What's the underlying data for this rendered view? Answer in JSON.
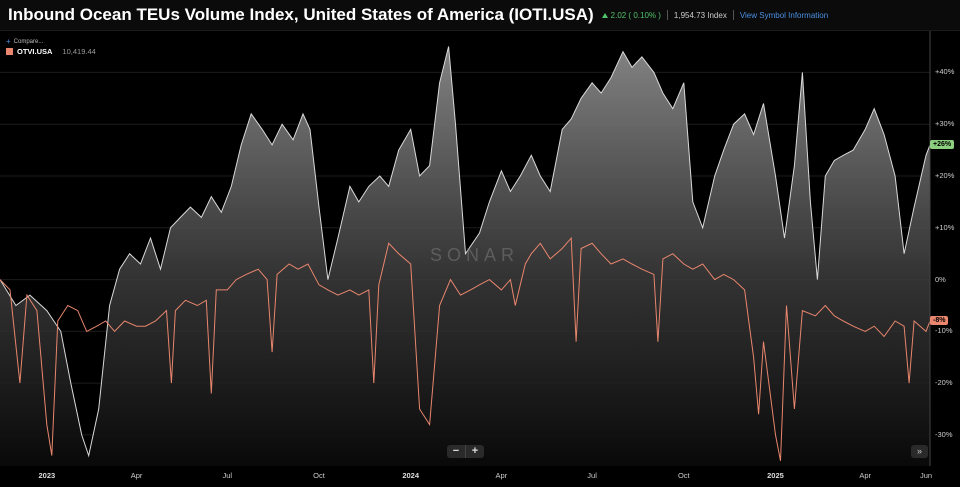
{
  "header": {
    "title": "Inbound Ocean TEUs Volume Index, United States of America (IOTI.USA)",
    "change": "2.02 ( 0.10% )",
    "price": "1,954.73 Index",
    "info_link": "View Symbol Information"
  },
  "compare_label": "Compare...",
  "legend": {
    "name": "OTVI.USA",
    "value": "10,419.44",
    "color": "#e9866d"
  },
  "watermark": "SONAR",
  "zoom": {
    "minus": "−",
    "plus": "+"
  },
  "ffwd": "»",
  "colors": {
    "ioti": "#d9d9d9",
    "otvi": "#e9866d",
    "green_badge": "#8ccf7e"
  },
  "chart_data": {
    "type": "line",
    "y_unit": "percent change",
    "ylim": [
      -36,
      48
    ],
    "yticks": [
      "+40%",
      "+30%",
      "+20%",
      "+10%",
      "0%",
      "-10%",
      "-20%",
      "-30%"
    ],
    "ytick_values": [
      40,
      30,
      20,
      10,
      0,
      -10,
      -20,
      -30
    ],
    "xlim": [
      "2022-11-15",
      "2025-06-05"
    ],
    "xticks": [
      {
        "label": "2023",
        "date": "2023-01-01",
        "bold": true
      },
      {
        "label": "Apr",
        "date": "2023-04-01"
      },
      {
        "label": "Jul",
        "date": "2023-07-01"
      },
      {
        "label": "Oct",
        "date": "2023-10-01"
      },
      {
        "label": "2024",
        "date": "2024-01-01",
        "bold": true
      },
      {
        "label": "Apr",
        "date": "2024-04-01"
      },
      {
        "label": "Jul",
        "date": "2024-07-01"
      },
      {
        "label": "Oct",
        "date": "2024-10-01"
      },
      {
        "label": "2025",
        "date": "2025-01-01",
        "bold": true
      },
      {
        "label": "Apr",
        "date": "2025-04-01"
      },
      {
        "label": "Jun",
        "date": "2025-06-01"
      }
    ],
    "last_badges": [
      {
        "series": "IOTI.USA",
        "label": "+26%",
        "value": 26
      },
      {
        "series": "OTVI.USA",
        "label": "-8%",
        "value": -8
      }
    ],
    "series": [
      {
        "key": "IOTI.USA",
        "area": true,
        "points": [
          [
            "2022-11-15",
            0
          ],
          [
            "2022-12-01",
            -5
          ],
          [
            "2022-12-15",
            -3
          ],
          [
            "2023-01-01",
            -6
          ],
          [
            "2023-01-15",
            -10
          ],
          [
            "2023-01-25",
            -20
          ],
          [
            "2023-02-05",
            -30
          ],
          [
            "2023-02-12",
            -34
          ],
          [
            "2023-02-22",
            -25
          ],
          [
            "2023-03-05",
            -5
          ],
          [
            "2023-03-15",
            2
          ],
          [
            "2023-03-25",
            5
          ],
          [
            "2023-04-05",
            3
          ],
          [
            "2023-04-15",
            8
          ],
          [
            "2023-04-25",
            2
          ],
          [
            "2023-05-05",
            10
          ],
          [
            "2023-05-15",
            12
          ],
          [
            "2023-05-25",
            14
          ],
          [
            "2023-06-05",
            12
          ],
          [
            "2023-06-15",
            16
          ],
          [
            "2023-06-25",
            13
          ],
          [
            "2023-07-05",
            18
          ],
          [
            "2023-07-15",
            26
          ],
          [
            "2023-07-25",
            32
          ],
          [
            "2023-08-05",
            29
          ],
          [
            "2023-08-15",
            26
          ],
          [
            "2023-08-25",
            30
          ],
          [
            "2023-09-05",
            27
          ],
          [
            "2023-09-15",
            32
          ],
          [
            "2023-09-22",
            29
          ],
          [
            "2023-10-01",
            14
          ],
          [
            "2023-10-10",
            0
          ],
          [
            "2023-10-20",
            8
          ],
          [
            "2023-11-01",
            18
          ],
          [
            "2023-11-10",
            15
          ],
          [
            "2023-11-20",
            18
          ],
          [
            "2023-12-01",
            20
          ],
          [
            "2023-12-10",
            18
          ],
          [
            "2023-12-20",
            25
          ],
          [
            "2024-01-01",
            29
          ],
          [
            "2024-01-10",
            20
          ],
          [
            "2024-01-20",
            22
          ],
          [
            "2024-01-30",
            38
          ],
          [
            "2024-02-08",
            45
          ],
          [
            "2024-02-15",
            30
          ],
          [
            "2024-02-25",
            5
          ],
          [
            "2024-03-10",
            9
          ],
          [
            "2024-03-20",
            15
          ],
          [
            "2024-04-01",
            21
          ],
          [
            "2024-04-10",
            17
          ],
          [
            "2024-04-20",
            20
          ],
          [
            "2024-05-01",
            24
          ],
          [
            "2024-05-10",
            20
          ],
          [
            "2024-05-20",
            17
          ],
          [
            "2024-06-01",
            29
          ],
          [
            "2024-06-10",
            31
          ],
          [
            "2024-06-20",
            35
          ],
          [
            "2024-07-01",
            38
          ],
          [
            "2024-07-10",
            36
          ],
          [
            "2024-07-20",
            39
          ],
          [
            "2024-08-01",
            44
          ],
          [
            "2024-08-10",
            41
          ],
          [
            "2024-08-20",
            43
          ],
          [
            "2024-09-01",
            40
          ],
          [
            "2024-09-10",
            36
          ],
          [
            "2024-09-20",
            33
          ],
          [
            "2024-10-01",
            38
          ],
          [
            "2024-10-10",
            15
          ],
          [
            "2024-10-20",
            10
          ],
          [
            "2024-11-01",
            20
          ],
          [
            "2024-11-10",
            25
          ],
          [
            "2024-11-20",
            30
          ],
          [
            "2024-12-01",
            32
          ],
          [
            "2024-12-10",
            28
          ],
          [
            "2024-12-20",
            34
          ],
          [
            "2025-01-01",
            20
          ],
          [
            "2025-01-10",
            8
          ],
          [
            "2025-01-20",
            22
          ],
          [
            "2025-01-28",
            40
          ],
          [
            "2025-02-05",
            15
          ],
          [
            "2025-02-12",
            0
          ],
          [
            "2025-02-20",
            20
          ],
          [
            "2025-03-01",
            23
          ],
          [
            "2025-03-10",
            24
          ],
          [
            "2025-03-20",
            25
          ],
          [
            "2025-04-01",
            29
          ],
          [
            "2025-04-10",
            33
          ],
          [
            "2025-04-20",
            28
          ],
          [
            "2025-05-01",
            20
          ],
          [
            "2025-05-10",
            5
          ],
          [
            "2025-05-20",
            14
          ],
          [
            "2025-06-01",
            24
          ],
          [
            "2025-06-05",
            26
          ]
        ]
      },
      {
        "key": "OTVI.USA",
        "area": false,
        "points": [
          [
            "2022-11-15",
            0
          ],
          [
            "2022-11-25",
            -2
          ],
          [
            "2022-12-05",
            -20
          ],
          [
            "2022-12-12",
            -3
          ],
          [
            "2022-12-22",
            -6
          ],
          [
            "2023-01-01",
            -28
          ],
          [
            "2023-01-06",
            -34
          ],
          [
            "2023-01-12",
            -8
          ],
          [
            "2023-01-22",
            -5
          ],
          [
            "2023-02-01",
            -6
          ],
          [
            "2023-02-10",
            -10
          ],
          [
            "2023-02-20",
            -9
          ],
          [
            "2023-03-01",
            -8
          ],
          [
            "2023-03-10",
            -10
          ],
          [
            "2023-03-20",
            -8
          ],
          [
            "2023-04-01",
            -9
          ],
          [
            "2023-04-10",
            -9
          ],
          [
            "2023-04-20",
            -8
          ],
          [
            "2023-05-01",
            -6
          ],
          [
            "2023-05-06",
            -20
          ],
          [
            "2023-05-10",
            -6
          ],
          [
            "2023-05-20",
            -4
          ],
          [
            "2023-06-01",
            -5
          ],
          [
            "2023-06-10",
            -4
          ],
          [
            "2023-06-15",
            -22
          ],
          [
            "2023-06-20",
            -2
          ],
          [
            "2023-07-01",
            -2
          ],
          [
            "2023-07-10",
            0
          ],
          [
            "2023-07-20",
            1
          ],
          [
            "2023-08-01",
            2
          ],
          [
            "2023-08-10",
            0
          ],
          [
            "2023-08-15",
            -14
          ],
          [
            "2023-08-20",
            1
          ],
          [
            "2023-09-01",
            3
          ],
          [
            "2023-09-10",
            2
          ],
          [
            "2023-09-20",
            3
          ],
          [
            "2023-10-01",
            -1
          ],
          [
            "2023-10-10",
            -2
          ],
          [
            "2023-10-20",
            -3
          ],
          [
            "2023-11-01",
            -2
          ],
          [
            "2023-11-10",
            -3
          ],
          [
            "2023-11-20",
            -2
          ],
          [
            "2023-11-25",
            -20
          ],
          [
            "2023-11-30",
            -1
          ],
          [
            "2023-12-10",
            7
          ],
          [
            "2023-12-20",
            5
          ],
          [
            "2024-01-01",
            3
          ],
          [
            "2024-01-10",
            -25
          ],
          [
            "2024-01-20",
            -28
          ],
          [
            "2024-01-30",
            -5
          ],
          [
            "2024-02-10",
            0
          ],
          [
            "2024-02-20",
            -3
          ],
          [
            "2024-03-01",
            -2
          ],
          [
            "2024-03-10",
            -1
          ],
          [
            "2024-03-20",
            0
          ],
          [
            "2024-04-01",
            -2
          ],
          [
            "2024-04-10",
            0
          ],
          [
            "2024-04-15",
            -5
          ],
          [
            "2024-04-25",
            3
          ],
          [
            "2024-05-01",
            5
          ],
          [
            "2024-05-10",
            7
          ],
          [
            "2024-05-20",
            4
          ],
          [
            "2024-06-01",
            6
          ],
          [
            "2024-06-10",
            8
          ],
          [
            "2024-06-15",
            -12
          ],
          [
            "2024-06-20",
            6
          ],
          [
            "2024-07-01",
            7
          ],
          [
            "2024-07-10",
            5
          ],
          [
            "2024-07-20",
            3
          ],
          [
            "2024-08-01",
            4
          ],
          [
            "2024-08-10",
            3
          ],
          [
            "2024-08-20",
            2
          ],
          [
            "2024-09-01",
            1
          ],
          [
            "2024-09-05",
            -12
          ],
          [
            "2024-09-10",
            4
          ],
          [
            "2024-09-20",
            5
          ],
          [
            "2024-10-01",
            3
          ],
          [
            "2024-10-10",
            2
          ],
          [
            "2024-10-20",
            3
          ],
          [
            "2024-11-01",
            0
          ],
          [
            "2024-11-10",
            1
          ],
          [
            "2024-11-20",
            0
          ],
          [
            "2024-12-01",
            -2
          ],
          [
            "2024-12-10",
            -15
          ],
          [
            "2024-12-15",
            -26
          ],
          [
            "2024-12-20",
            -12
          ],
          [
            "2025-01-01",
            -30
          ],
          [
            "2025-01-06",
            -35
          ],
          [
            "2025-01-12",
            -5
          ],
          [
            "2025-01-20",
            -25
          ],
          [
            "2025-01-28",
            -6
          ],
          [
            "2025-02-10",
            -7
          ],
          [
            "2025-02-20",
            -5
          ],
          [
            "2025-03-01",
            -7
          ],
          [
            "2025-03-10",
            -8
          ],
          [
            "2025-03-20",
            -9
          ],
          [
            "2025-04-01",
            -10
          ],
          [
            "2025-04-10",
            -9
          ],
          [
            "2025-04-20",
            -11
          ],
          [
            "2025-05-01",
            -8
          ],
          [
            "2025-05-10",
            -9
          ],
          [
            "2025-05-15",
            -20
          ],
          [
            "2025-05-20",
            -8
          ],
          [
            "2025-06-01",
            -10
          ],
          [
            "2025-06-05",
            -8
          ]
        ]
      }
    ]
  }
}
